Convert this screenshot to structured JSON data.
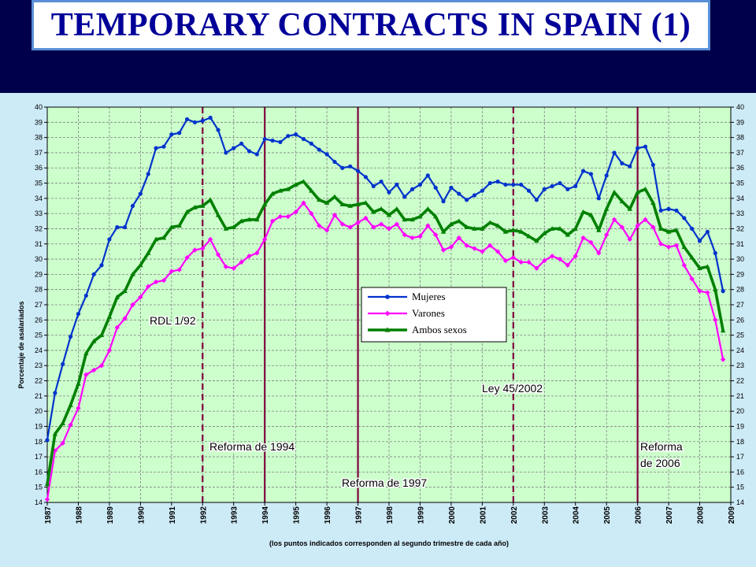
{
  "header": {
    "title": "TEMPORARY CONTRACTS IN SPAIN (1)"
  },
  "chart_data": {
    "type": "line",
    "ylabel": "Porcentaje de asalariados",
    "xlabel": "(los puntos indicados corresponden al segundo trimestre de cada año)",
    "ylim": [
      14,
      40
    ],
    "xlim": [
      1987,
      2009
    ],
    "x_tick_labels": [
      "1987",
      "1988",
      "1989",
      "1990",
      "1991",
      "1992",
      "1993",
      "1994",
      "1995",
      "1996",
      "1997",
      "1998",
      "1999",
      "2000",
      "2001",
      "2002",
      "2003",
      "2004",
      "2005",
      "2006",
      "2007",
      "2008",
      "2009"
    ],
    "y_ticks": [
      14,
      15,
      16,
      17,
      18,
      19,
      20,
      21,
      22,
      23,
      24,
      25,
      26,
      27,
      28,
      29,
      30,
      31,
      32,
      33,
      34,
      35,
      36,
      37,
      38,
      39,
      40
    ],
    "grid": true,
    "plot_background": "#ccffcc",
    "legend_placement": "center",
    "series": [
      {
        "name": "Mujeres",
        "color": "#0033cc",
        "marker": "circle",
        "x0": 1987,
        "dx": 0.25,
        "values": [
          18.1,
          21.2,
          23.1,
          24.9,
          26.4,
          27.6,
          29.0,
          29.6,
          31.3,
          32.1,
          32.1,
          33.5,
          34.3,
          35.6,
          37.3,
          37.4,
          38.2,
          38.3,
          39.2,
          39.0,
          39.1,
          39.3,
          38.5,
          37.0,
          37.3,
          37.6,
          37.1,
          36.9,
          37.9,
          37.8,
          37.7,
          38.1,
          38.2,
          37.9,
          37.6,
          37.2,
          36.9,
          36.4,
          36.0,
          36.1,
          35.8,
          35.4,
          34.8,
          35.1,
          34.4,
          34.9,
          34.1,
          34.6,
          34.9,
          35.5,
          34.7,
          33.8,
          34.7,
          34.3,
          33.9,
          34.2,
          34.5,
          35.0,
          35.1,
          34.9,
          34.9,
          34.9,
          34.5,
          33.9,
          34.6,
          34.8,
          35.0,
          34.6,
          34.8,
          35.8,
          35.6,
          34.0,
          35.5,
          37.0,
          36.3,
          36.1,
          37.3,
          37.4,
          36.2,
          33.2,
          33.3,
          33.2,
          32.7,
          32.0,
          31.2,
          31.8,
          30.4,
          27.9
        ]
      },
      {
        "name": "Varones",
        "color": "#ff00ff",
        "marker": "diamond",
        "x0": 1987,
        "dx": 0.25,
        "values": [
          14.2,
          17.4,
          17.9,
          19.1,
          20.2,
          22.4,
          22.7,
          23.0,
          24.0,
          25.5,
          26.1,
          27.0,
          27.5,
          28.2,
          28.5,
          28.6,
          29.2,
          29.3,
          30.1,
          30.6,
          30.7,
          31.3,
          30.3,
          29.5,
          29.4,
          29.8,
          30.2,
          30.4,
          31.3,
          32.5,
          32.8,
          32.8,
          33.1,
          33.7,
          33.0,
          32.2,
          31.9,
          32.9,
          32.3,
          32.1,
          32.4,
          32.7,
          32.1,
          32.3,
          32.0,
          32.3,
          31.6,
          31.4,
          31.5,
          32.2,
          31.6,
          30.6,
          30.8,
          31.4,
          30.9,
          30.7,
          30.5,
          30.9,
          30.5,
          29.9,
          30.1,
          29.8,
          29.8,
          29.4,
          29.9,
          30.2,
          30.0,
          29.6,
          30.2,
          31.4,
          31.1,
          30.4,
          31.6,
          32.6,
          32.1,
          31.3,
          32.2,
          32.6,
          32.1,
          31.0,
          30.8,
          30.9,
          29.6,
          28.7,
          27.9,
          27.8,
          26.0,
          23.4
        ]
      },
      {
        "name": "Ambos sexos",
        "color": "#008000",
        "marker": "triangle",
        "x0": 1987,
        "dx": 0.25,
        "values": [
          15.2,
          18.5,
          19.2,
          20.4,
          21.8,
          23.8,
          24.6,
          25.0,
          26.2,
          27.5,
          27.9,
          29.0,
          29.6,
          30.4,
          31.3,
          31.4,
          32.1,
          32.2,
          33.1,
          33.4,
          33.5,
          33.9,
          32.9,
          32.0,
          32.1,
          32.5,
          32.6,
          32.6,
          33.6,
          34.3,
          34.5,
          34.6,
          34.9,
          35.1,
          34.5,
          33.9,
          33.7,
          34.1,
          33.6,
          33.5,
          33.6,
          33.7,
          33.1,
          33.3,
          32.9,
          33.3,
          32.6,
          32.6,
          32.8,
          33.3,
          32.8,
          31.8,
          32.3,
          32.5,
          32.1,
          32.0,
          32.0,
          32.4,
          32.2,
          31.8,
          31.9,
          31.8,
          31.5,
          31.2,
          31.7,
          32.0,
          32.0,
          31.6,
          32.0,
          33.1,
          32.9,
          31.9,
          33.3,
          34.4,
          33.8,
          33.3,
          34.4,
          34.6,
          33.7,
          32.0,
          31.8,
          31.9,
          30.8,
          30.1,
          29.4,
          29.5,
          28.0,
          25.3
        ]
      }
    ],
    "vlines": [
      {
        "x": 1992.0,
        "style": "dashed",
        "color": "#800040"
      },
      {
        "x": 1994.0,
        "style": "solid",
        "color": "#800040"
      },
      {
        "x": 1997.0,
        "style": "solid",
        "color": "#800040"
      },
      {
        "x": 2002.0,
        "style": "dashed",
        "color": "#800040"
      },
      {
        "x": 2006.0,
        "style": "solid",
        "color": "#800040"
      }
    ],
    "annotations": [
      {
        "id": "rdl",
        "text": "RDL 1/92"
      },
      {
        "id": "ref1994",
        "text": "Reforma de 1994"
      },
      {
        "id": "ref1997",
        "text": "Reforma de 1997"
      },
      {
        "id": "ley2002",
        "text": "Ley 45/2002"
      },
      {
        "id": "ref2006a",
        "text": "Reforma"
      },
      {
        "id": "ref2006b",
        "text": "de 2006"
      }
    ]
  }
}
